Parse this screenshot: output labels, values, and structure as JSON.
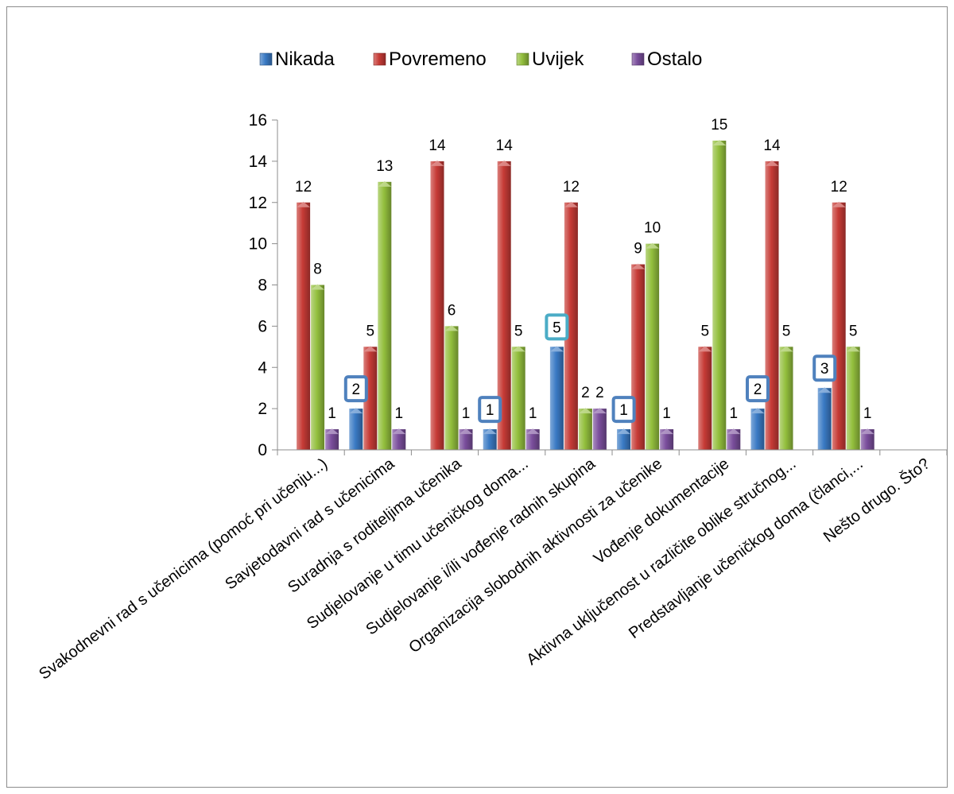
{
  "chart_data": {
    "type": "bar",
    "title": "",
    "xlabel": "",
    "ylabel": "",
    "ylim": [
      0,
      16
    ],
    "yticks": [
      0,
      2,
      4,
      6,
      8,
      10,
      12,
      14,
      16
    ],
    "grid": false,
    "legend_position": "top",
    "categories": [
      "Svakodnevni rad s učenicima (pomoć pri učenju...)",
      "Savjetodavni rad s učenicima",
      "Suradnja s roditeljima učenika",
      "Sudjelovanje u timu učeničkog doma...",
      "Sudjelovanje i/ili vođenje radnih skupina",
      "Organizacija slobodnih aktivnosti za učenike",
      "Vođenje dokumentacije",
      "Aktivna uključenost u različite oblike stručnog...",
      "Predstavljanje učeničkog doma (članci,...",
      "Nešto drugo. Što?"
    ],
    "series": [
      {
        "name": "Nikada",
        "color": "#3a7ac4",
        "values": [
          null,
          2,
          null,
          1,
          5,
          1,
          null,
          2,
          3,
          null
        ]
      },
      {
        "name": "Povremeno",
        "color": "#c63b36",
        "values": [
          12,
          5,
          14,
          14,
          12,
          9,
          5,
          14,
          12,
          null
        ]
      },
      {
        "name": "Uvijek",
        "color": "#93bf3d",
        "values": [
          8,
          13,
          6,
          5,
          2,
          10,
          15,
          5,
          5,
          null
        ]
      },
      {
        "name": "Ostalo",
        "color": "#7a4e9c",
        "values": [
          1,
          1,
          1,
          1,
          2,
          1,
          1,
          null,
          1,
          null
        ]
      }
    ],
    "boxed_labels": {
      "series": "Nikada",
      "border_color": "#4f81bd",
      "highlight_category_index": 4,
      "highlight_border_color": "#4bacc6"
    }
  }
}
